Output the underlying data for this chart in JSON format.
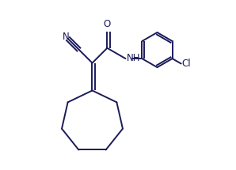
{
  "background_color": "#ffffff",
  "line_color": "#1a1a5a",
  "line_width": 1.4,
  "text_color": "#1a1a5a",
  "font_size": 8.5,
  "figw": 2.98,
  "figh": 2.15,
  "dpi": 100,
  "xlim": [
    0.0,
    1.0
  ],
  "ylim": [
    0.0,
    1.0
  ]
}
